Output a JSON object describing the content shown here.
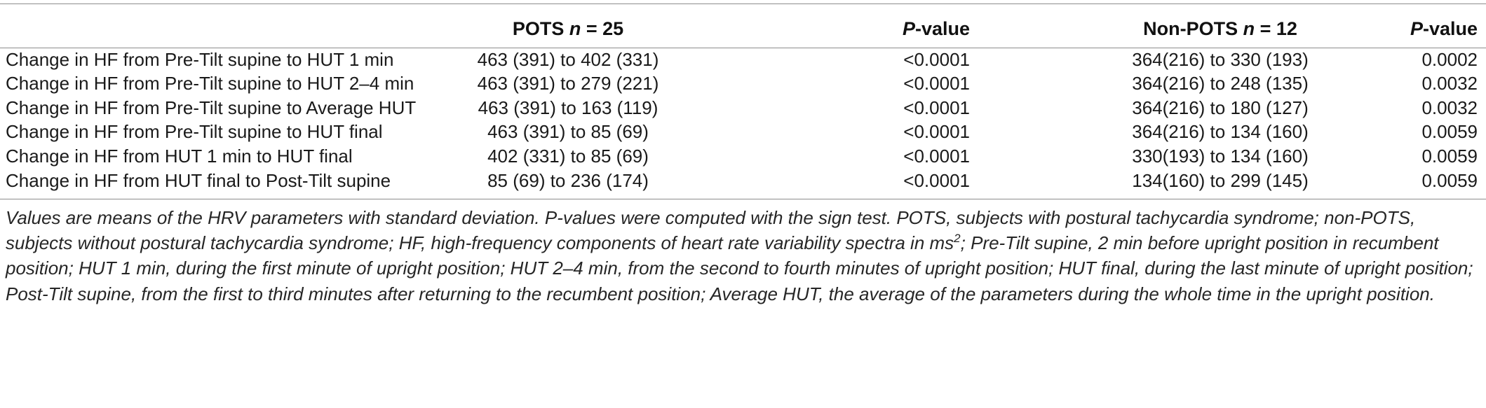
{
  "table": {
    "header": {
      "label": "",
      "pots_prefix": "POTS ",
      "pots_n": "n",
      "pots_suffix": " = 25",
      "p1_prefix": "P",
      "p1_suffix": "-value",
      "nonpots_prefix": "Non-POTS ",
      "nonpots_n": "n",
      "nonpots_suffix": " = 12",
      "p2_prefix": "P",
      "p2_suffix": "-value"
    },
    "rows": [
      {
        "label": "Change in HF from Pre-Tilt supine to HUT 1 min",
        "pots": "463 (391) to 402 (331)",
        "p1": "<0.0001",
        "nonpots": "364(216) to 330 (193)",
        "p2": "0.0002"
      },
      {
        "label": "Change in HF from Pre-Tilt supine to HUT 2–4 min",
        "pots": "463 (391) to 279 (221)",
        "p1": "<0.0001",
        "nonpots": "364(216) to 248 (135)",
        "p2": "0.0032"
      },
      {
        "label": "Change in HF from Pre-Tilt supine to Average HUT",
        "pots": "463 (391) to 163 (119)",
        "p1": "<0.0001",
        "nonpots": "364(216) to 180 (127)",
        "p2": "0.0032"
      },
      {
        "label": "Change in HF from Pre-Tilt supine to HUT final",
        "pots": "463 (391) to 85 (69)",
        "p1": "<0.0001",
        "nonpots": "364(216) to 134 (160)",
        "p2": "0.0059"
      },
      {
        "label": "Change in HF from HUT 1 min to HUT final",
        "pots": "402 (331) to 85 (69)",
        "p1": "<0.0001",
        "nonpots": "330(193) to 134 (160)",
        "p2": "0.0059"
      },
      {
        "label": "Change in HF from HUT final to Post-Tilt supine",
        "pots": "85 (69) to 236 (174)",
        "p1": "<0.0001",
        "nonpots": "134(160) to 299 (145)",
        "p2": "0.0059"
      }
    ]
  },
  "footnote": {
    "part1": "Values are means of the HRV parameters with standard deviation. P-values were computed with the sign test. POTS, subjects with postural tachycardia syndrome; non-POTS, subjects without postural tachycardia syndrome; HF, high-frequency components of heart rate variability spectra in ms",
    "sup": "2",
    "part2": "; Pre-Tilt supine, 2 min before upright position in recumbent position; HUT 1 min, during the first minute of upright position; HUT 2–4 min, from the second to fourth minutes of upright position; HUT final, during the last minute of upright position; Post-Tilt supine, from the first to third minutes after returning to the recumbent position; Average HUT, the average of the parameters during the whole time in the upright position."
  }
}
